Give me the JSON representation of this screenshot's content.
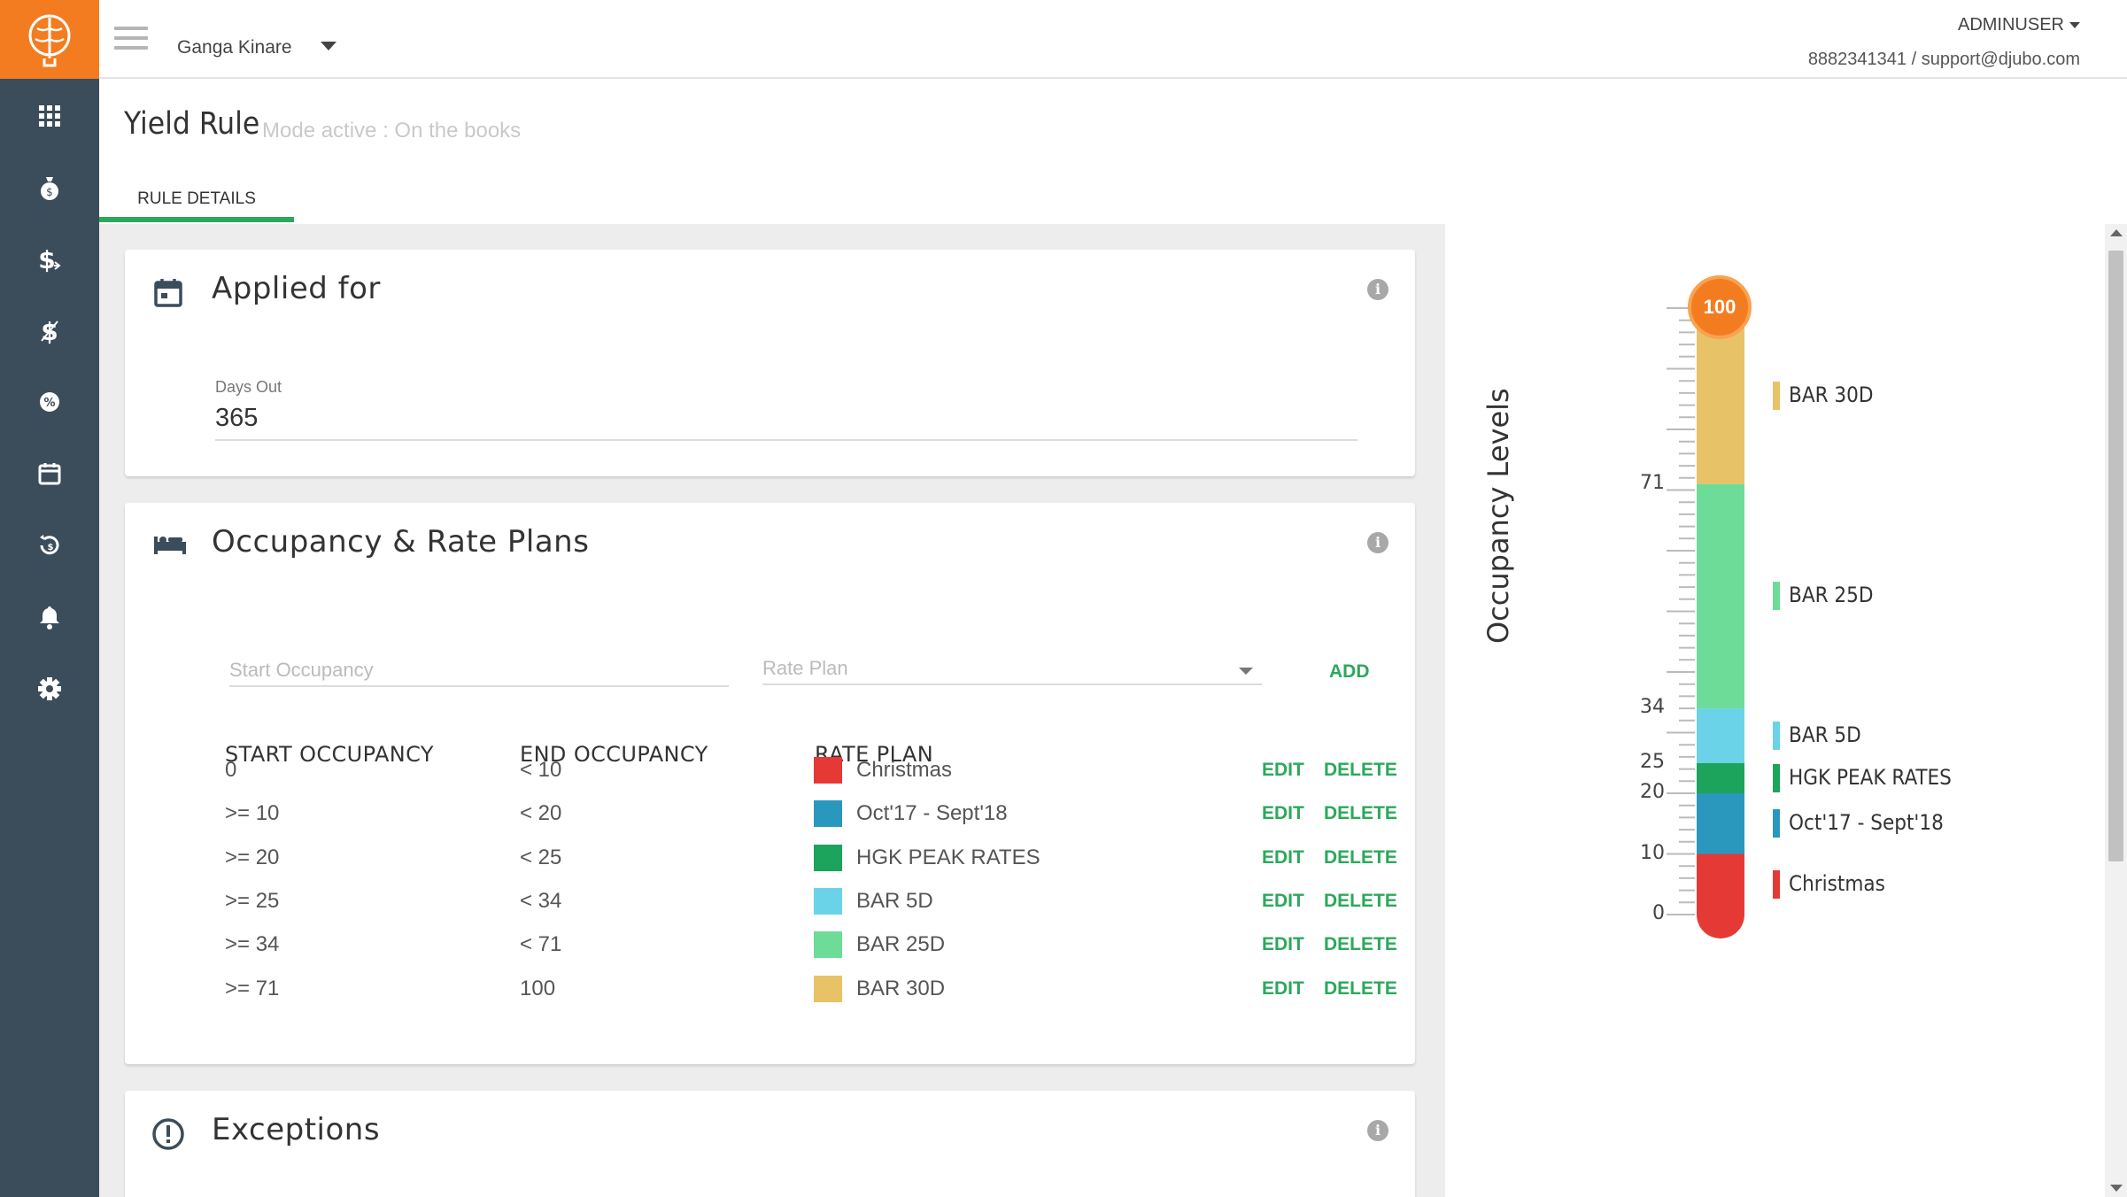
{
  "topbar": {
    "hotel_name": "Ganga Kinare",
    "user": "ADMINUSER",
    "contact": "8882341341 / support@djubo.com"
  },
  "sidebar": {
    "items": [
      {
        "icon": "grid-icon"
      },
      {
        "icon": "money-bag-icon"
      },
      {
        "icon": "dollar-icon"
      },
      {
        "icon": "dollar-alt-icon"
      },
      {
        "icon": "circle-icon"
      },
      {
        "icon": "calendar-icon"
      },
      {
        "icon": "history-icon"
      },
      {
        "icon": "bell-icon"
      },
      {
        "icon": "gear-icon"
      }
    ]
  },
  "page": {
    "title": "Yield Rule",
    "mode": "Mode active : On the books",
    "tab": "RULE DETAILS"
  },
  "applied_for": {
    "title": "Applied for",
    "days_out_label": "Days Out",
    "days_out_value": "365"
  },
  "occupancy": {
    "title": "Occupancy & Rate Plans",
    "start_placeholder": "Start Occupancy",
    "rate_plan_placeholder": "Rate Plan",
    "add_label": "ADD",
    "headers": {
      "start": "START OCCUPANCY",
      "end": "END OCCUPANCY",
      "rate_plan": "RATE PLAN"
    },
    "edit_label": "EDIT",
    "delete_label": "DELETE",
    "rows": [
      {
        "start": "0",
        "end": "< 10",
        "rate_plan": "Christmas",
        "color": "#e53935"
      },
      {
        "start": ">= 10",
        "end": "< 20",
        "rate_plan": "Oct'17 - Sept'18",
        "color": "#2a98bd"
      },
      {
        "start": ">= 20",
        "end": "< 25",
        "rate_plan": "HGK PEAK RATES",
        "color": "#1ca35c"
      },
      {
        "start": ">= 25",
        "end": "< 34",
        "rate_plan": "BAR 5D",
        "color": "#6ad3e8"
      },
      {
        "start": ">= 34",
        "end": "< 71",
        "rate_plan": "BAR 25D",
        "color": "#6ddc98"
      },
      {
        "start": ">= 71",
        "end": "100",
        "rate_plan": "BAR 30D",
        "color": "#e8c266"
      }
    ]
  },
  "exceptions": {
    "title": "Exceptions"
  },
  "occupancy_chart": {
    "axis_label": "Occupancy Levels",
    "max_label": "100",
    "ticks": [
      "71",
      "34",
      "25",
      "20",
      "10",
      "0"
    ],
    "segments": [
      {
        "from": 0,
        "to": 10,
        "label": "Christmas",
        "color": "#e53935"
      },
      {
        "from": 10,
        "to": 20,
        "label": "Oct'17 - Sept'18",
        "color": "#2a98bd"
      },
      {
        "from": 20,
        "to": 25,
        "label": "HGK PEAK RATES",
        "color": "#1ca35c"
      },
      {
        "from": 25,
        "to": 34,
        "label": "BAR 5D",
        "color": "#6ad3e8"
      },
      {
        "from": 34,
        "to": 71,
        "label": "BAR 25D",
        "color": "#6ddc98"
      },
      {
        "from": 71,
        "to": 100,
        "label": "BAR 30D",
        "color": "#e8c266"
      }
    ]
  }
}
